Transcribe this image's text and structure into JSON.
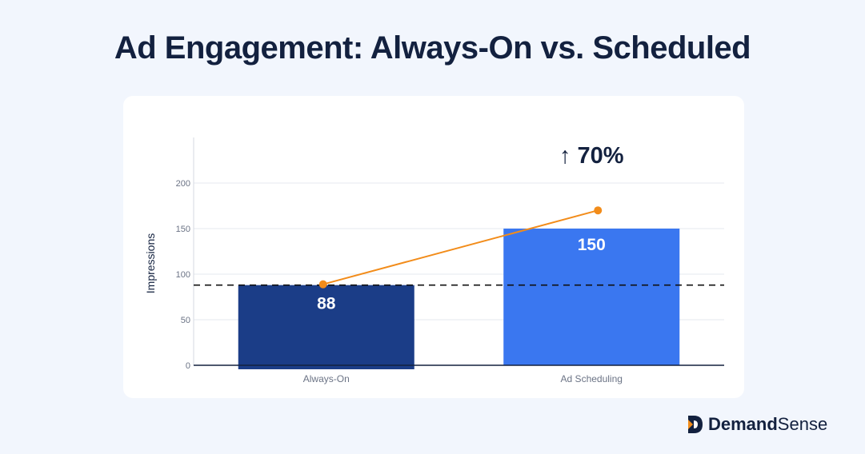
{
  "page": {
    "title": "Ad Engagement: Always-On vs. Scheduled"
  },
  "brand": {
    "name_bold": "Demand",
    "name_regular": "Sense",
    "logo_icon": "demandsense-logo-icon"
  },
  "chart_data": {
    "type": "bar",
    "categories": [
      "Always-On",
      "Ad Scheduling"
    ],
    "values": [
      88,
      150
    ],
    "bar_colors": [
      "#1b3d87",
      "#3a77f0"
    ],
    "value_labels": [
      "88",
      "150"
    ],
    "ylabel": "Impressions",
    "xlabel": "",
    "ylim": [
      0,
      250
    ],
    "yticks": [
      0,
      50,
      100,
      150,
      200
    ],
    "grid": true,
    "baseline": 88,
    "trend_points": [
      88,
      170
    ],
    "trend_color": "#f28c1a",
    "annotation": {
      "text": "↑ 70%",
      "category": "Ad Scheduling"
    }
  }
}
